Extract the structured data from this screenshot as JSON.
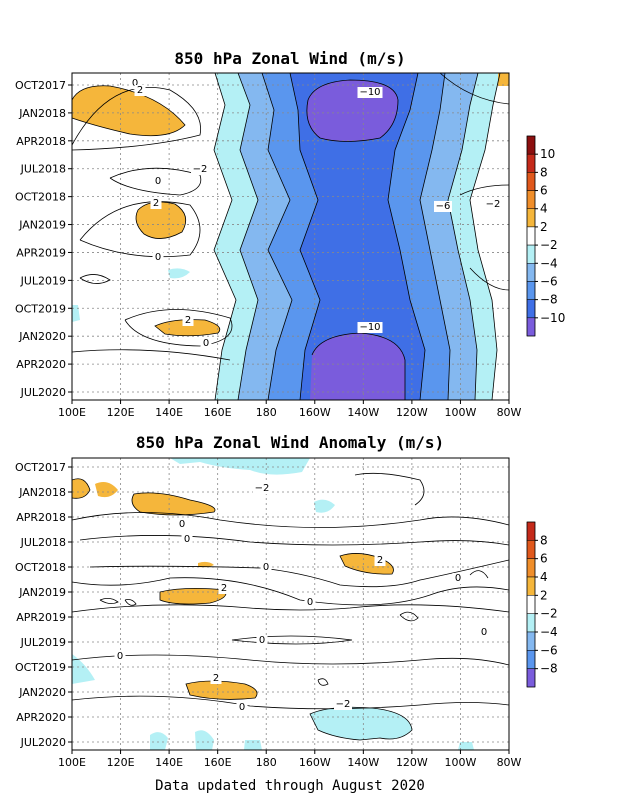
{
  "footer": "Data updated through August 2020",
  "colors": {
    "p4": "#f5b63b",
    "p6": "#f08e2a",
    "p8": "#e0581c",
    "p10": "#c42a1a",
    "p12": "#8c0f0f",
    "pw": "#ffffff",
    "n2": "#b4f0f5",
    "n4": "#84b8f0",
    "n6": "#5a96ee",
    "n8": "#3f6fe6",
    "n10": "#7a5cdc"
  },
  "chart_data": [
    {
      "type": "heatmap",
      "title": "850 hPa Zonal Wind (m/s)",
      "x_ticks": [
        "100E",
        "120E",
        "140E",
        "160E",
        "180",
        "160W",
        "140W",
        "120W",
        "100W",
        "80W"
      ],
      "y_ticks": [
        "OCT2017",
        "JAN2018",
        "APR2018",
        "JUL2018",
        "OCT2018",
        "JAN2019",
        "APR2019",
        "JUL2019",
        "OCT2019",
        "JAN2020",
        "APR2020",
        "JUL2020"
      ],
      "colorbar": {
        "labels": [
          "10",
          "8",
          "6",
          "4",
          "2",
          "−2",
          "−4",
          "−6",
          "−8",
          "−10"
        ],
        "bands": [
          "p12",
          "p10",
          "p8",
          "p6",
          "p4",
          "pw",
          "n2",
          "n4",
          "n6",
          "n8",
          "n10"
        ]
      },
      "contour_labels": [
        "0",
        "2",
        "−2",
        "−10",
        "0",
        "2",
        "0",
        "−6",
        "−2",
        "2",
        "0",
        "−10"
      ]
    },
    {
      "type": "heatmap",
      "title": "850 hPa Zonal Wind Anomaly (m/s)",
      "x_ticks": [
        "100E",
        "120E",
        "140E",
        "160E",
        "180",
        "160W",
        "140W",
        "120W",
        "100W",
        "80W"
      ],
      "y_ticks": [
        "OCT2017",
        "JAN2018",
        "APR2018",
        "JUL2018",
        "OCT2018",
        "JAN2019",
        "APR2019",
        "JUL2019",
        "OCT2019",
        "JAN2020",
        "APR2020",
        "JUL2020"
      ],
      "colorbar": {
        "labels": [
          "8",
          "6",
          "4",
          "2",
          "−2",
          "−4",
          "−6",
          "−8"
        ],
        "bands": [
          "p10",
          "p8",
          "p6",
          "p4",
          "pw",
          "n2",
          "n4",
          "n6",
          "n10"
        ]
      },
      "contour_labels": [
        "−2",
        "0",
        "0",
        "0",
        "2",
        "0",
        "2",
        "0",
        "0",
        "0",
        "0",
        "2",
        "0",
        "−2"
      ]
    }
  ]
}
